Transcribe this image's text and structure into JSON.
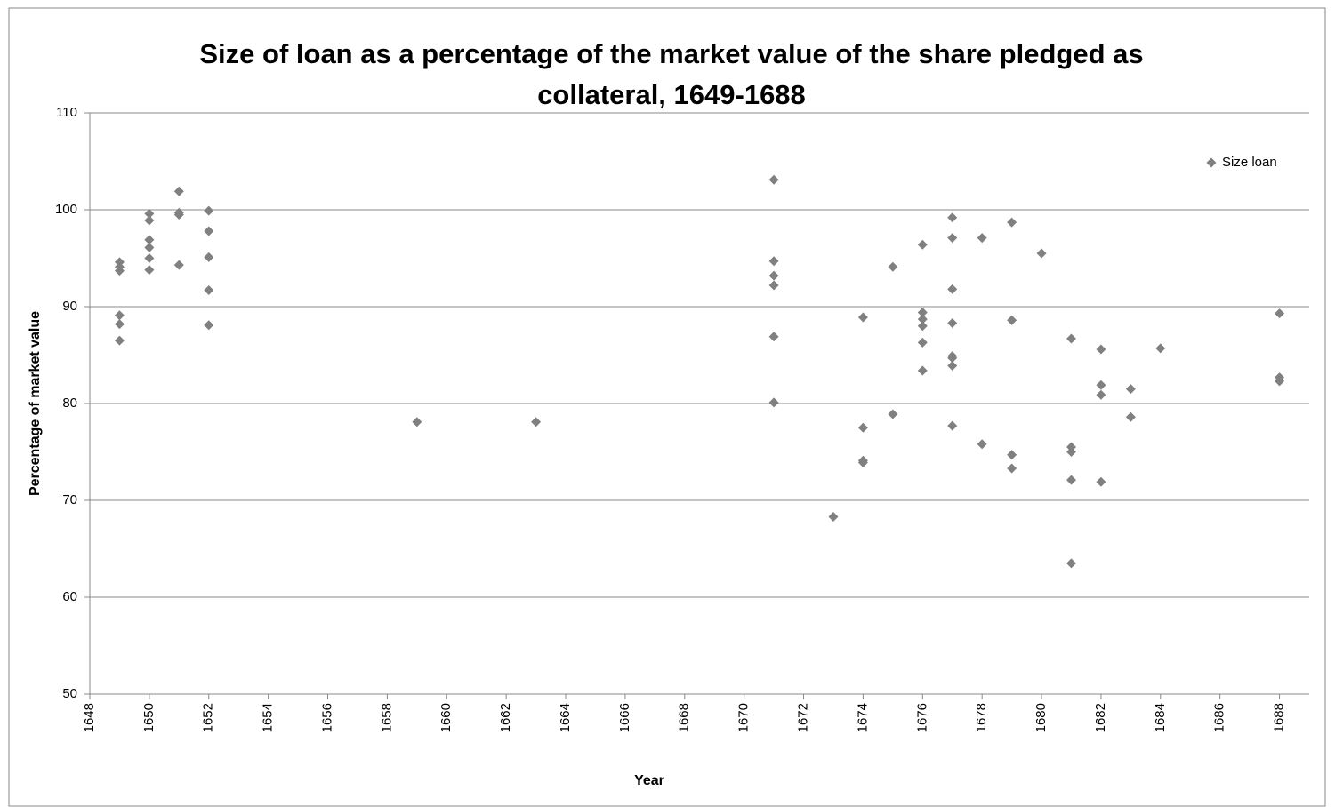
{
  "chart_data": {
    "type": "scatter",
    "title": "Size of loan as a percentage of the market value of the share pledged as collateral, 1649-1688",
    "x_label": "Year",
    "y_label": "Percentage of market value",
    "x": [
      1649,
      1649,
      1649,
      1649,
      1649,
      1649,
      1650,
      1650,
      1650,
      1650,
      1650,
      1650,
      1651,
      1651,
      1651,
      1651,
      1652,
      1652,
      1652,
      1652,
      1652,
      1659,
      1663,
      1671,
      1671,
      1671,
      1671,
      1671,
      1671,
      1673,
      1674,
      1674,
      1674,
      1674,
      1675,
      1675,
      1676,
      1676,
      1676,
      1676,
      1676,
      1676,
      1677,
      1677,
      1677,
      1677,
      1677,
      1677,
      1677,
      1677,
      1678,
      1678,
      1679,
      1679,
      1679,
      1679,
      1680,
      1681,
      1681,
      1681,
      1681,
      1681,
      1682,
      1682,
      1682,
      1682,
      1683,
      1683,
      1684,
      1688,
      1688,
      1688
    ],
    "series": [
      {
        "name": "Size loan",
        "color": "#808080",
        "values": [
          94.6,
          94.1,
          93.7,
          89.1,
          88.2,
          86.5,
          99.6,
          98.9,
          96.9,
          96.1,
          95.0,
          93.8,
          101.9,
          99.7,
          99.5,
          94.3,
          99.9,
          97.8,
          95.1,
          91.7,
          88.1,
          78.1,
          78.1,
          103.1,
          94.7,
          93.2,
          92.2,
          86.9,
          80.1,
          68.3,
          88.9,
          77.5,
          74.1,
          73.9,
          94.1,
          78.9,
          96.4,
          89.4,
          88.7,
          88.0,
          86.3,
          83.4,
          99.2,
          97.1,
          91.8,
          88.3,
          84.9,
          84.7,
          83.9,
          77.7,
          97.1,
          75.8,
          98.7,
          88.6,
          74.7,
          73.3,
          95.5,
          86.7,
          75.5,
          75.0,
          72.1,
          63.5,
          85.6,
          81.9,
          80.9,
          71.9,
          81.5,
          78.6,
          85.7,
          89.3,
          82.7,
          82.3
        ]
      }
    ],
    "xlim": [
      1648,
      1689
    ],
    "ylim": [
      50,
      110
    ],
    "xticks": [
      1648,
      1650,
      1652,
      1654,
      1656,
      1658,
      1660,
      1662,
      1664,
      1666,
      1668,
      1670,
      1672,
      1674,
      1676,
      1678,
      1680,
      1682,
      1684,
      1686,
      1688
    ],
    "yticks": [
      50,
      60,
      70,
      80,
      90,
      100,
      110
    ],
    "grid": true,
    "legend": "top-right"
  }
}
